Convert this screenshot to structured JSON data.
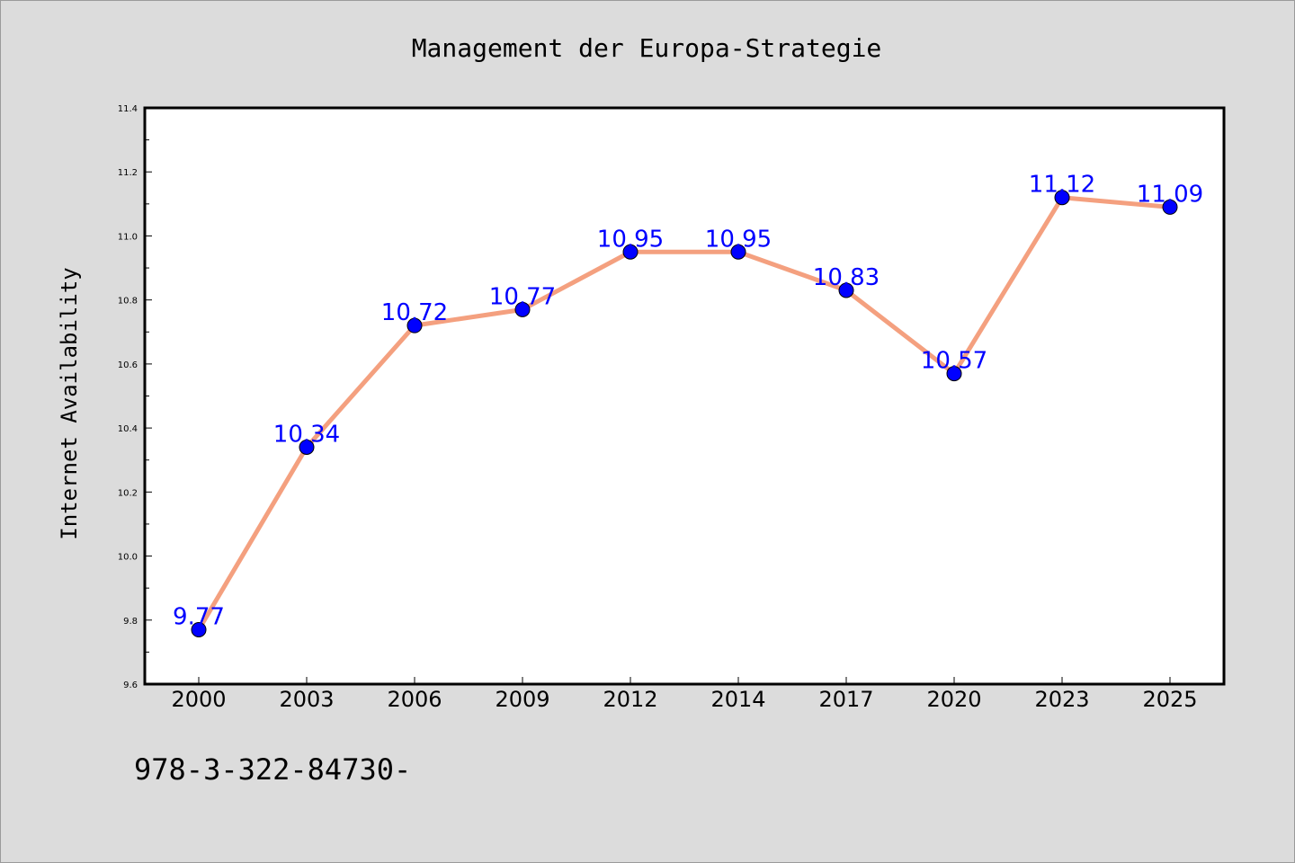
{
  "chart_data": {
    "type": "line",
    "title": "Management der Europa-Strategie",
    "ylabel": "Internet Availability",
    "xlabel": "",
    "categories": [
      "2000",
      "2003",
      "2006",
      "2009",
      "2012",
      "2014",
      "2017",
      "2020",
      "2023",
      "2025"
    ],
    "values": [
      9.77,
      10.34,
      10.72,
      10.77,
      10.95,
      10.95,
      10.83,
      10.57,
      11.12,
      11.09
    ],
    "data_labels": [
      "9.77",
      "10.34",
      "10.72",
      "10.77",
      "10.95",
      "10.95",
      "10.83",
      "10.57",
      "11.12",
      "11.09"
    ],
    "ylim": [
      9.6,
      11.4
    ],
    "yticks": [
      "9.6",
      "9.8",
      "10.0",
      "10.2",
      "10.4",
      "10.6",
      "10.8",
      "11.0",
      "11.2",
      "11.4"
    ],
    "grid": false,
    "legend": "none",
    "colors": {
      "line": "#f4a07f",
      "marker": "#0000ff",
      "label": "#0000ff",
      "background": "#dcdcdc",
      "plot_background": "#ffffff"
    }
  },
  "footer": {
    "text": "978-3-322-84730-"
  }
}
